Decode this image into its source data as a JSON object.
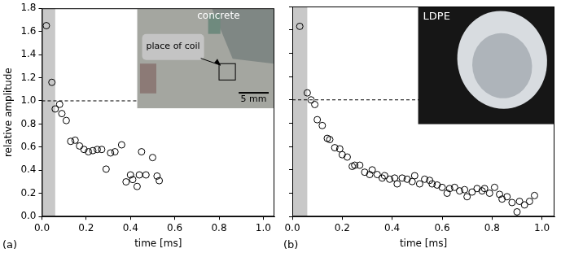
{
  "chart_data": [
    {
      "type": "scatter",
      "panel_label": "(a)",
      "x_label": "time [ms]",
      "y_label": "relative amplitude",
      "x": [
        0.02,
        0.045,
        0.06,
        0.08,
        0.09,
        0.11,
        0.13,
        0.15,
        0.17,
        0.19,
        0.21,
        0.23,
        0.25,
        0.27,
        0.29,
        0.31,
        0.33,
        0.36,
        0.38,
        0.4,
        0.41,
        0.43,
        0.44,
        0.45,
        0.47,
        0.5,
        0.52,
        0.53
      ],
      "values": [
        1.65,
        1.16,
        0.93,
        0.97,
        0.89,
        0.83,
        0.65,
        0.66,
        0.61,
        0.58,
        0.56,
        0.57,
        0.58,
        0.58,
        0.41,
        0.55,
        0.56,
        0.62,
        0.3,
        0.36,
        0.32,
        0.26,
        0.36,
        0.56,
        0.36,
        0.51,
        0.35,
        0.31
      ],
      "color": "#000000",
      "marker": "circle",
      "xlim": [
        0,
        1.05
      ],
      "xticks": [
        {
          "value": 0,
          "label": "0.0"
        },
        0.2,
        0.4,
        0.6,
        0.8,
        {
          "value": 1,
          "label": "1.0"
        }
      ],
      "ylim": [
        0,
        1.8
      ],
      "yticks": [
        {
          "value": 0,
          "label": "0.0"
        },
        0.2,
        0.4,
        0.6,
        0.8,
        {
          "value": 1,
          "label": "1.0"
        },
        1.2,
        1.4,
        1.6,
        1.8
      ],
      "grid": false,
      "band": [
        0,
        0.06
      ],
      "hline": 1,
      "inset": {
        "title": "concrete",
        "pointer": "place of coil",
        "scale_bar": "5 mm"
      }
    },
    {
      "type": "scatter",
      "panel_label": "(b)",
      "x_label": "time [ms]",
      "x": [
        0.03,
        0.06,
        0.075,
        0.09,
        0.1,
        0.12,
        0.14,
        0.15,
        0.17,
        0.19,
        0.2,
        0.22,
        0.24,
        0.25,
        0.27,
        0.29,
        0.31,
        0.32,
        0.34,
        0.36,
        0.37,
        0.39,
        0.41,
        0.42,
        0.44,
        0.46,
        0.48,
        0.49,
        0.51,
        0.53,
        0.55,
        0.56,
        0.58,
        0.6,
        0.62,
        0.63,
        0.65,
        0.67,
        0.69,
        0.7,
        0.72,
        0.74,
        0.76,
        0.77,
        0.79,
        0.81,
        0.83,
        0.84,
        0.86,
        0.88,
        0.9,
        0.91,
        0.93,
        0.95,
        0.97
      ],
      "values": [
        1.63,
        1.06,
        1.0,
        0.96,
        0.83,
        0.78,
        0.67,
        0.66,
        0.59,
        0.58,
        0.53,
        0.51,
        0.43,
        0.44,
        0.44,
        0.38,
        0.36,
        0.4,
        0.36,
        0.33,
        0.35,
        0.32,
        0.33,
        0.28,
        0.33,
        0.32,
        0.3,
        0.35,
        0.28,
        0.32,
        0.31,
        0.28,
        0.27,
        0.25,
        0.2,
        0.24,
        0.25,
        0.22,
        0.23,
        0.17,
        0.21,
        0.24,
        0.22,
        0.24,
        0.2,
        0.25,
        0.19,
        0.15,
        0.17,
        0.12,
        0.04,
        0.13,
        0.1,
        0.13,
        0.18
      ],
      "color": "#000000",
      "marker": "circle",
      "xlim": [
        0,
        1.05
      ],
      "xticks": [
        {
          "value": 0,
          "label": "0.0"
        },
        0.2,
        0.4,
        0.6,
        0.8,
        {
          "value": 1,
          "label": "1.0"
        }
      ],
      "ylim": [
        0,
        1.8
      ],
      "yticks": [
        0,
        0.2,
        0.4,
        0.6,
        0.8,
        1,
        1.2,
        1.4,
        1.6,
        1.8
      ],
      "tick_labels": "x",
      "grid": false,
      "band": [
        0,
        0.06
      ],
      "hline": 1,
      "inset": {
        "title": "LDPE"
      }
    }
  ]
}
